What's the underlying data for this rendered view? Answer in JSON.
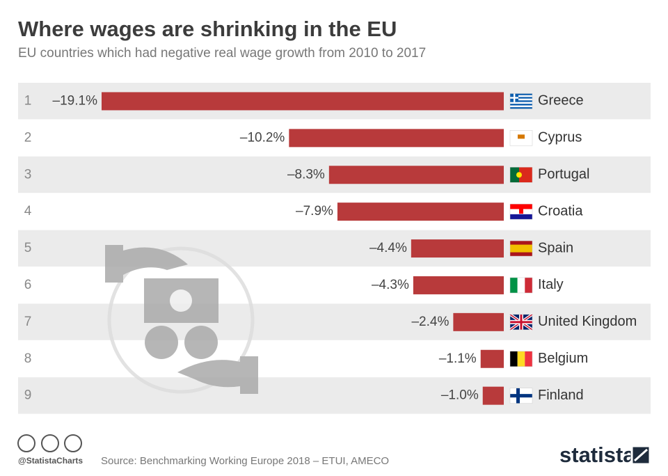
{
  "chart_data": {
    "type": "bar",
    "orientation": "horizontal",
    "title": "Where wages are shrinking in the EU",
    "subtitle": "EU countries which had negative real wage growth from 2010 to 2017",
    "ranks": [
      1,
      2,
      3,
      4,
      5,
      6,
      7,
      8,
      9
    ],
    "categories": [
      "Greece",
      "Cyprus",
      "Portugal",
      "Croatia",
      "Spain",
      "Italy",
      "United Kingdom",
      "Belgium",
      "Finland"
    ],
    "values": [
      -19.1,
      -10.2,
      -8.3,
      -7.9,
      -4.4,
      -4.3,
      -2.4,
      -1.1,
      -1.0
    ],
    "value_labels": [
      "–19.1%",
      "–10.2%",
      "–8.3%",
      "–7.9%",
      "–4.4%",
      "–4.3%",
      "–2.4%",
      "–1.1%",
      "–1.0%"
    ],
    "color": "#b83a3b",
    "xlim": [
      -19.1,
      0
    ],
    "source": "Source: Benchmarking Working Europe 2018 – ETUI, AMECO",
    "handle": "@StatistaCharts",
    "brand": "statista"
  }
}
